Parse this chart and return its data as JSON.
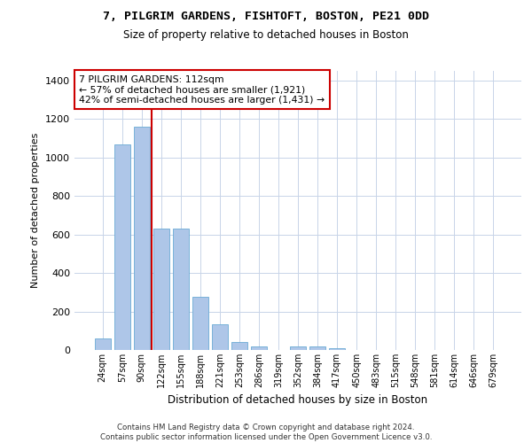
{
  "title_line1": "7, PILGRIM GARDENS, FISHTOFT, BOSTON, PE21 0DD",
  "title_line2": "Size of property relative to detached houses in Boston",
  "xlabel": "Distribution of detached houses by size in Boston",
  "ylabel": "Number of detached properties",
  "categories": [
    "24sqm",
    "57sqm",
    "90sqm",
    "122sqm",
    "155sqm",
    "188sqm",
    "221sqm",
    "253sqm",
    "286sqm",
    "319sqm",
    "352sqm",
    "384sqm",
    "417sqm",
    "450sqm",
    "483sqm",
    "515sqm",
    "548sqm",
    "581sqm",
    "614sqm",
    "646sqm",
    "679sqm"
  ],
  "values": [
    62,
    1068,
    1160,
    630,
    630,
    275,
    135,
    42,
    20,
    0,
    20,
    20,
    10,
    0,
    0,
    0,
    0,
    0,
    0,
    0,
    0
  ],
  "bar_color": "#aec6e8",
  "bar_edge_color": "#6aaad4",
  "vline_x_idx": 2,
  "vline_color": "#cc0000",
  "ylim": [
    0,
    1450
  ],
  "yticks": [
    0,
    200,
    400,
    600,
    800,
    1000,
    1200,
    1400
  ],
  "annotation_text": "7 PILGRIM GARDENS: 112sqm\n← 57% of detached houses are smaller (1,921)\n42% of semi-detached houses are larger (1,431) →",
  "annotation_box_color": "#ffffff",
  "annotation_edge_color": "#cc0000",
  "background_color": "#ffffff",
  "grid_color": "#c8d4e8",
  "footer_text": "Contains HM Land Registry data © Crown copyright and database right 2024.\nContains public sector information licensed under the Open Government Licence v3.0."
}
